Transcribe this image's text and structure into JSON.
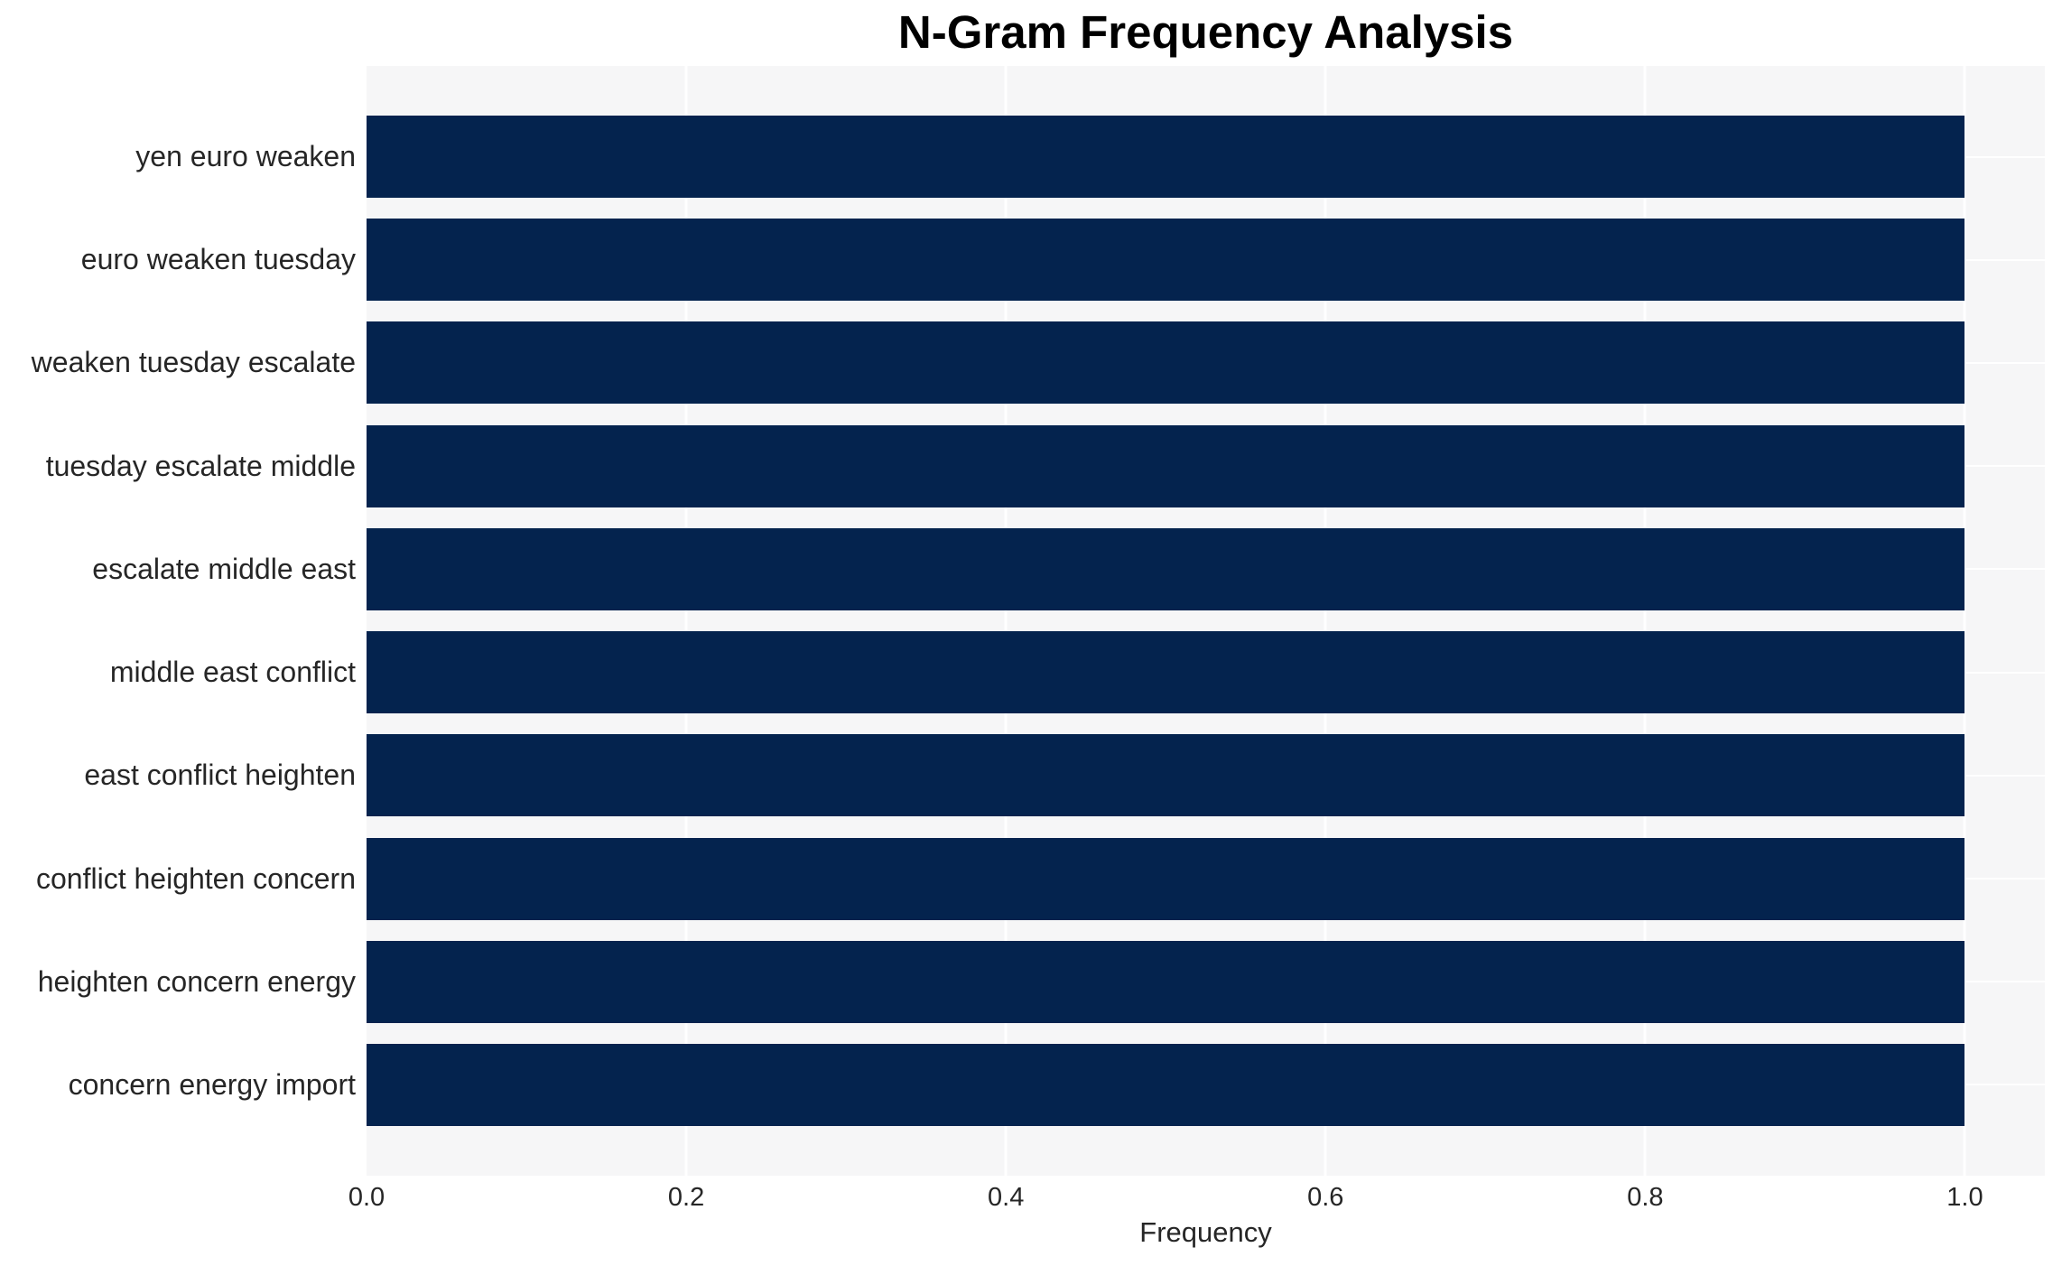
{
  "colors": {
    "bar": "#04234e",
    "plot_background": "#f6f6f7",
    "grid": "#ffffff",
    "text": "#262626",
    "title": "#000000"
  },
  "chart_data": {
    "type": "bar",
    "orientation": "horizontal",
    "title": "N-Gram Frequency Analysis",
    "xlabel": "Frequency",
    "ylabel": "",
    "categories": [
      "yen euro weaken",
      "euro weaken tuesday",
      "weaken tuesday escalate",
      "tuesday escalate middle",
      "escalate middle east",
      "middle east conflict",
      "east conflict heighten",
      "conflict heighten concern",
      "heighten concern energy",
      "concern energy import"
    ],
    "values": [
      1.0,
      1.0,
      1.0,
      1.0,
      1.0,
      1.0,
      1.0,
      1.0,
      1.0,
      1.0
    ],
    "xticks": [
      0.0,
      0.2,
      0.4,
      0.6,
      0.8,
      1.0
    ],
    "xtick_labels": [
      "0.0",
      "0.2",
      "0.4",
      "0.6",
      "0.8",
      "1.0"
    ],
    "xlim": [
      0,
      1.05
    ],
    "grid": "white gridlines on light-gray plot background; vertical lines at x ticks, horizontal lines at category centers",
    "legend": "none"
  }
}
